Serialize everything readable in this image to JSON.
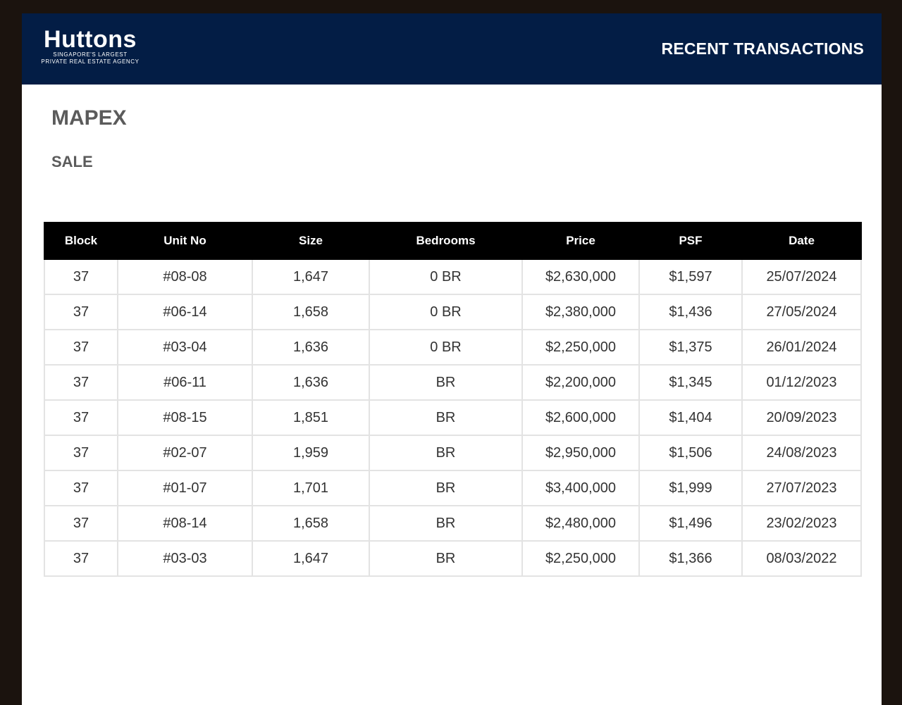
{
  "header": {
    "logo_text": "Huttons",
    "logo_tagline_1": "SINGAPORE'S LARGEST",
    "logo_tagline_2": "PRIVATE REAL ESTATE AGENCY",
    "title": "RECENT TRANSACTIONS",
    "background_color": "#031d45"
  },
  "project": {
    "name": "MAPEX",
    "type": "SALE"
  },
  "table": {
    "columns": [
      "Block",
      "Unit No",
      "Size",
      "Bedrooms",
      "Price",
      "PSF",
      "Date"
    ],
    "rows": [
      [
        "37",
        "#08-08",
        "1,647",
        "0 BR",
        "$2,630,000",
        "$1,597",
        "25/07/2024"
      ],
      [
        "37",
        "#06-14",
        "1,658",
        "0 BR",
        "$2,380,000",
        "$1,436",
        "27/05/2024"
      ],
      [
        "37",
        "#03-04",
        "1,636",
        "0 BR",
        "$2,250,000",
        "$1,375",
        "26/01/2024"
      ],
      [
        "37",
        "#06-11",
        "1,636",
        "BR",
        "$2,200,000",
        "$1,345",
        "01/12/2023"
      ],
      [
        "37",
        "#08-15",
        "1,851",
        "BR",
        "$2,600,000",
        "$1,404",
        "20/09/2023"
      ],
      [
        "37",
        "#02-07",
        "1,959",
        "BR",
        "$2,950,000",
        "$1,506",
        "24/08/2023"
      ],
      [
        "37",
        "#01-07",
        "1,701",
        "BR",
        "$3,400,000",
        "$1,999",
        "27/07/2023"
      ],
      [
        "37",
        "#08-14",
        "1,658",
        "BR",
        "$2,480,000",
        "$1,496",
        "23/02/2023"
      ],
      [
        "37",
        "#03-03",
        "1,647",
        "BR",
        "$2,250,000",
        "$1,366",
        "08/03/2022"
      ]
    ]
  }
}
